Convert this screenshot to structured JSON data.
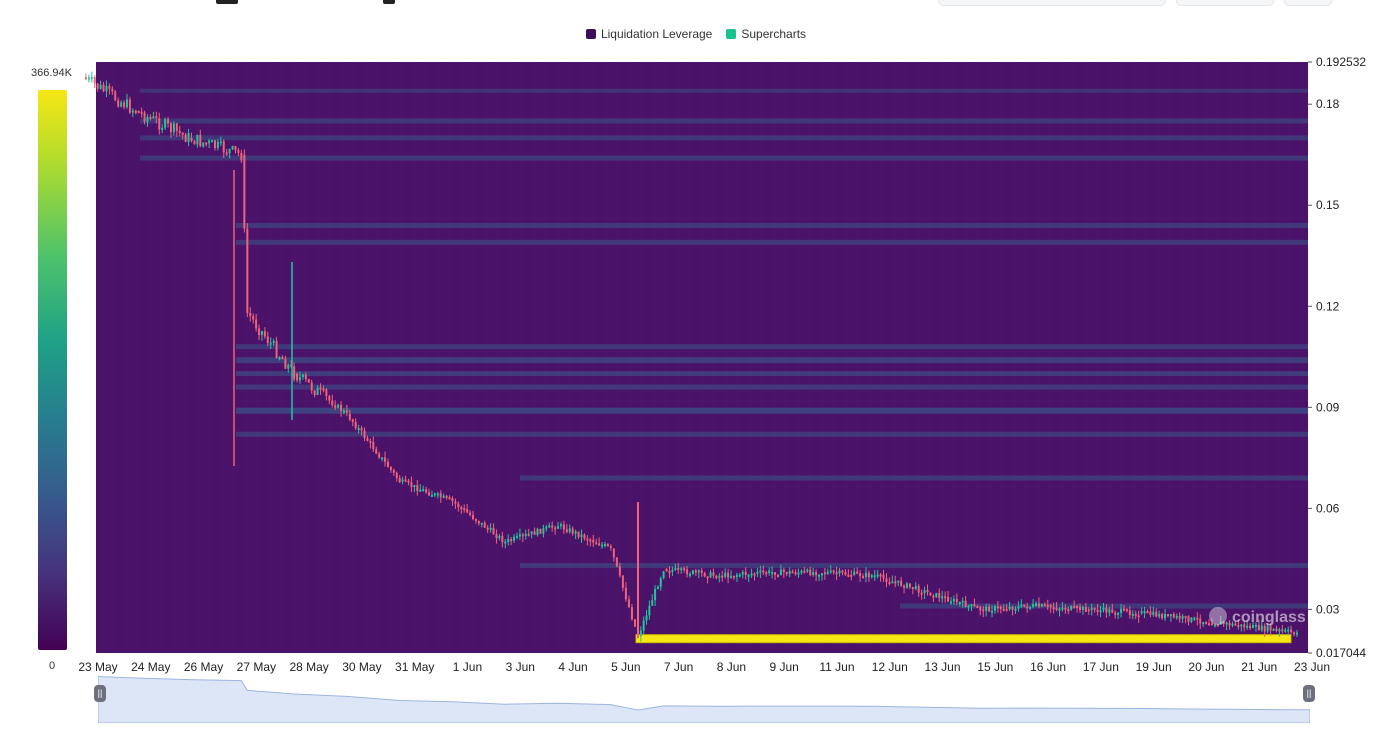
{
  "legend": {
    "items": [
      {
        "label": "Liquidation Leverage",
        "color": "#3b0f5c"
      },
      {
        "label": "Supercharts",
        "color": "#19c38f"
      }
    ]
  },
  "colorbar": {
    "max_label": "366.94K",
    "min_label": "0",
    "colors": [
      "#440154",
      "#46337e",
      "#365c8d",
      "#277f8e",
      "#1fa187",
      "#4cc26c",
      "#b5dd2b",
      "#f6e614"
    ]
  },
  "watermark": "coinglass",
  "colors": {
    "background": "#4a1268",
    "up": "#1fc79e",
    "down": "#f0637a",
    "band": "#3a5a8c",
    "hot": "#f6e614",
    "navigator_fill": "#dde6f7",
    "navigator_line": "#9db4e0"
  },
  "chart_data": {
    "type": "heatmap",
    "title": "",
    "xlabel": "",
    "ylabel": "",
    "ylim": [
      0.017044,
      0.192532
    ],
    "y_axis_ticks": [
      "0.192532",
      "0.18",
      "0.15",
      "0.12",
      "0.09",
      "0.06",
      "0.03",
      "0.017044"
    ],
    "x_axis_ticks": [
      "23 May",
      "24 May",
      "26 May",
      "27 May",
      "28 May",
      "30 May",
      "31 May",
      "1 Jun",
      "3 Jun",
      "4 Jun",
      "5 Jun",
      "7 Jun",
      "8 Jun",
      "9 Jun",
      "11 Jun",
      "12 Jun",
      "13 Jun",
      "15 Jun",
      "16 Jun",
      "17 Jun",
      "19 Jun",
      "20 Jun",
      "21 Jun",
      "23 Jun"
    ],
    "price_series": {
      "name": "Supercharts",
      "x": [
        "23 May",
        "24 May",
        "26 May",
        "27 May",
        "27 May",
        "28 May",
        "30 May",
        "31 May",
        "1 Jun",
        "3 Jun",
        "4 Jun",
        "5 Jun",
        "6 Jun",
        "7 Jun",
        "8 Jun",
        "9 Jun",
        "11 Jun",
        "12 Jun",
        "13 Jun",
        "15 Jun",
        "16 Jun",
        "17 Jun",
        "19 Jun",
        "20 Jun",
        "21 Jun",
        "23 Jun"
      ],
      "y": [
        0.188,
        0.178,
        0.17,
        0.165,
        0.118,
        0.1,
        0.088,
        0.068,
        0.062,
        0.05,
        0.055,
        0.048,
        0.022,
        0.042,
        0.04,
        0.041,
        0.041,
        0.04,
        0.035,
        0.03,
        0.031,
        0.03,
        0.029,
        0.027,
        0.025,
        0.023
      ]
    },
    "liquidation_bands": [
      {
        "price": 0.184,
        "intensity": 0.2
      },
      {
        "price": 0.175,
        "intensity": 0.3
      },
      {
        "price": 0.17,
        "intensity": 0.25
      },
      {
        "price": 0.164,
        "intensity": 0.3
      },
      {
        "price": 0.144,
        "intensity": 0.35
      },
      {
        "price": 0.139,
        "intensity": 0.3
      },
      {
        "price": 0.108,
        "intensity": 0.3
      },
      {
        "price": 0.104,
        "intensity": 0.45
      },
      {
        "price": 0.1,
        "intensity": 0.4
      },
      {
        "price": 0.096,
        "intensity": 0.35
      },
      {
        "price": 0.089,
        "intensity": 0.55
      },
      {
        "price": 0.082,
        "intensity": 0.3
      },
      {
        "price": 0.069,
        "intensity": 0.3
      },
      {
        "price": 0.043,
        "intensity": 0.3
      },
      {
        "price": 0.031,
        "intensity": 0.3
      },
      {
        "price": 0.0213,
        "intensity": 1.0
      }
    ]
  },
  "navigator": {
    "left_handle": "||",
    "right_handle": "||"
  }
}
